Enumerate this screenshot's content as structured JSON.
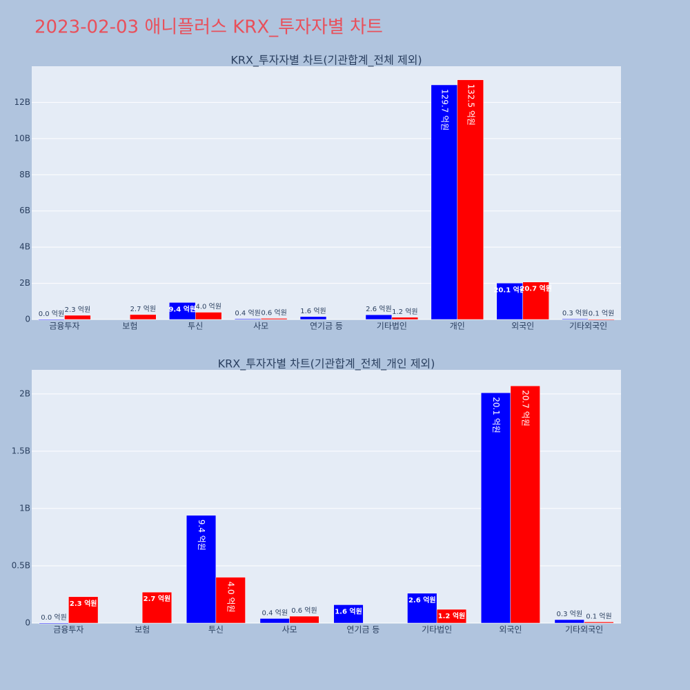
{
  "title": "2023-02-03 애니플러스 KRX_투자자별 차트",
  "chart_data": [
    {
      "type": "bar",
      "title": "KRX_투자자별 차트(기관합계_전체 제외)",
      "categories": [
        "금융투자",
        "보험",
        "투신",
        "사모",
        "연기금 등",
        "기타법인",
        "개인",
        "외국인",
        "기타외국인"
      ],
      "series": [
        {
          "color": "#0000ff",
          "values": [
            0,
            null,
            940000000,
            40000000,
            160000000,
            260000000,
            12970000000,
            2010000000,
            30000000
          ],
          "value_labels": [
            "0.0 억원",
            null,
            "9.4 억원",
            "0.4 억원",
            "1.6 억원",
            "2.6 억원",
            "129.7 억원",
            "20.1 억원",
            "0.3 억원"
          ]
        },
        {
          "color": "#ff0000",
          "values": [
            230000000,
            270000000,
            400000000,
            60000000,
            null,
            120000000,
            13250000000,
            2070000000,
            10000000
          ],
          "value_labels": [
            "2.3 억원",
            "2.7 억원",
            "4.0 억원",
            "0.6 억원",
            null,
            "1.2 억원",
            "132.5 억원",
            "20.7 억원",
            "0.1 억원"
          ]
        }
      ],
      "ylim": [
        0,
        14000000000
      ],
      "yticks": [
        0,
        {
          "value": 2000000000,
          "label": "2B"
        },
        {
          "value": 4000000000,
          "label": "4B"
        },
        {
          "value": 6000000000,
          "label": "6B"
        },
        {
          "value": 8000000000,
          "label": "8B"
        },
        {
          "value": 10000000000,
          "label": "10B"
        },
        {
          "value": 12000000000,
          "label": "12B"
        }
      ],
      "grid": true
    },
    {
      "type": "bar",
      "title": "KRX_투자자별 차트(기관합계_전체_개인 제외)",
      "categories": [
        "금융투자",
        "보험",
        "투신",
        "사모",
        "연기금 등",
        "기타법인",
        "외국인",
        "기타외국인"
      ],
      "series": [
        {
          "color": "#0000ff",
          "values": [
            0,
            null,
            940000000,
            40000000,
            160000000,
            260000000,
            2010000000,
            30000000
          ],
          "value_labels": [
            "0.0 억원",
            null,
            "9.4 억원",
            "0.4 억원",
            "1.6 억원",
            "2.6 억원",
            "20.1 억원",
            "0.3 억원"
          ]
        },
        {
          "color": "#ff0000",
          "values": [
            230000000,
            270000000,
            400000000,
            60000000,
            null,
            120000000,
            2070000000,
            10000000
          ],
          "value_labels": [
            "2.3 억원",
            "2.7 억원",
            "4.0 억원",
            "0.6 억원",
            null,
            "1.2 억원",
            "20.7 억원",
            "0.1 억원"
          ]
        }
      ],
      "ylim": [
        0,
        2210000000
      ],
      "yticks": [
        0,
        {
          "value": 500000000,
          "label": "0.5B"
        },
        {
          "value": 1000000000,
          "label": "1B"
        },
        {
          "value": 1500000000,
          "label": "1.5B"
        },
        {
          "value": 2000000000,
          "label": "2B"
        }
      ],
      "grid": true
    }
  ]
}
